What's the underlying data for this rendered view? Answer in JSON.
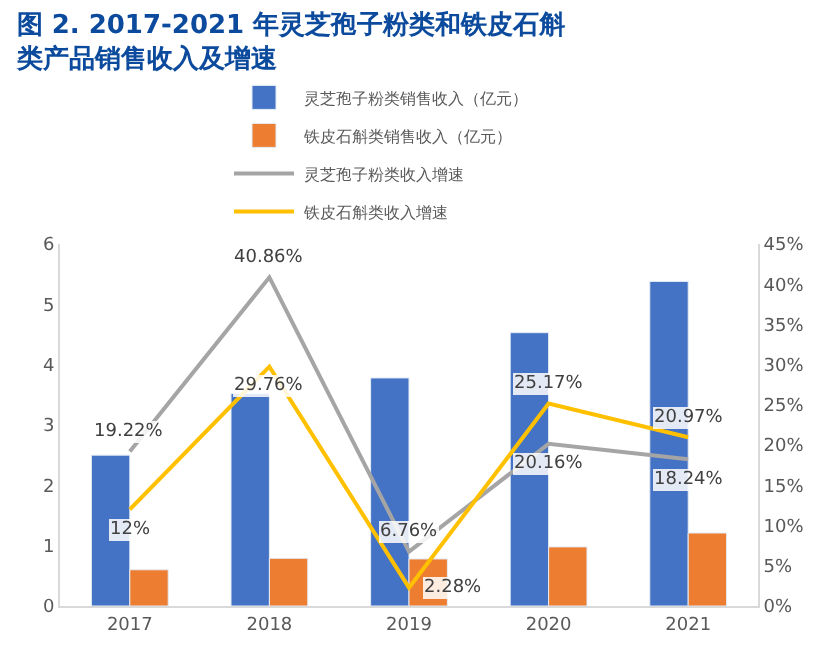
{
  "chart_data": {
    "type": "bar",
    "title": "图 2. 2017-2021 年灵芝孢子粉类和铁皮石斛类产品销售收入及增速",
    "categories": [
      "2017",
      "2018",
      "2019",
      "2020",
      "2021"
    ],
    "series": [
      {
        "name": "灵芝孢子粉类销售收入（亿元）",
        "color": "#4472c4",
        "values": [
          2.5,
          3.52,
          3.78,
          4.53,
          5.38
        ]
      },
      {
        "name": "铁皮石斛类销售收入（亿元）",
        "color": "#ed7d31",
        "values": [
          0.6,
          0.79,
          0.78,
          0.98,
          1.21
        ]
      },
      {
        "name": "灵芝孢子粉类收入增速",
        "type": "line",
        "axis": "y2",
        "color": "#a5a5a5",
        "values": [
          19.22,
          40.86,
          6.76,
          20.16,
          18.24
        ],
        "value_labels": [
          "19.22%",
          "40.86%",
          "6.76%",
          "20.16%",
          "18.24%"
        ]
      },
      {
        "name": "铁皮石斛类收入增速",
        "type": "line",
        "axis": "y2",
        "color": "#ffc000",
        "values": [
          12,
          29.76,
          2.28,
          25.17,
          20.97
        ],
        "value_labels": [
          "12%",
          "29.76%",
          "2.28%",
          "25.17%",
          "20.97%"
        ]
      }
    ],
    "ylim": [
      0,
      6
    ],
    "yticks": [
      0,
      1,
      2,
      3,
      4,
      5,
      6
    ],
    "y2lim": [
      0,
      45
    ],
    "y2ticks": [
      {
        "value": 0,
        "label": "0%"
      },
      {
        "value": 5,
        "label": "5%"
      },
      {
        "value": 10,
        "label": "10%"
      },
      {
        "value": 15,
        "label": "15%"
      },
      {
        "value": 20,
        "label": "20%"
      },
      {
        "value": 25,
        "label": "25%"
      },
      {
        "value": 30,
        "label": "30%"
      },
      {
        "value": 35,
        "label": "35%"
      },
      {
        "value": 40,
        "label": "40%"
      },
      {
        "value": 45,
        "label": "45%"
      }
    ],
    "legend": "top",
    "marker": "none",
    "line_style": "solid"
  }
}
